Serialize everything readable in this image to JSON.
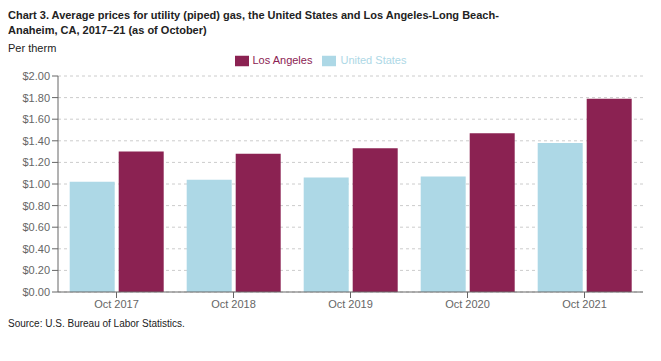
{
  "chart_data": {
    "type": "bar",
    "title": "Chart 3. Average prices for utility (piped) gas, the United States and Los Angeles-Long Beach-\nAnaheim, CA, 2017–21 (as of October)",
    "ylabel": "Per therm",
    "annotations": [
      "Source: U.S. Bureau of Labor Statistics."
    ],
    "categories": [
      "Oct 2017",
      "Oct 2018",
      "Oct 2019",
      "Oct 2020",
      "Oct 2021"
    ],
    "series": [
      {
        "name": "United States",
        "color": "#ADD8E6",
        "values": [
          1.02,
          1.04,
          1.06,
          1.07,
          1.38
        ]
      },
      {
        "name": "Los Angeles",
        "color": "#8B2252",
        "values": [
          1.3,
          1.28,
          1.33,
          1.47,
          1.79
        ]
      }
    ],
    "ylim": [
      0,
      2.0
    ],
    "yticks": [
      {
        "value": 0.0,
        "label": "$0.00"
      },
      {
        "value": 0.2,
        "label": "$0.20"
      },
      {
        "value": 0.4,
        "label": "$0.40"
      },
      {
        "value": 0.6,
        "label": "$0.60"
      },
      {
        "value": 0.8,
        "label": "$0.80"
      },
      {
        "value": 1.0,
        "label": "$1.00"
      },
      {
        "value": 1.2,
        "label": "$1.20"
      },
      {
        "value": 1.4,
        "label": "$1.40"
      },
      {
        "value": 1.6,
        "label": "$1.60"
      },
      {
        "value": 1.8,
        "label": "$1.80"
      },
      {
        "value": 2.0,
        "label": "$2.00"
      }
    ],
    "grid": true,
    "legend": "top"
  }
}
